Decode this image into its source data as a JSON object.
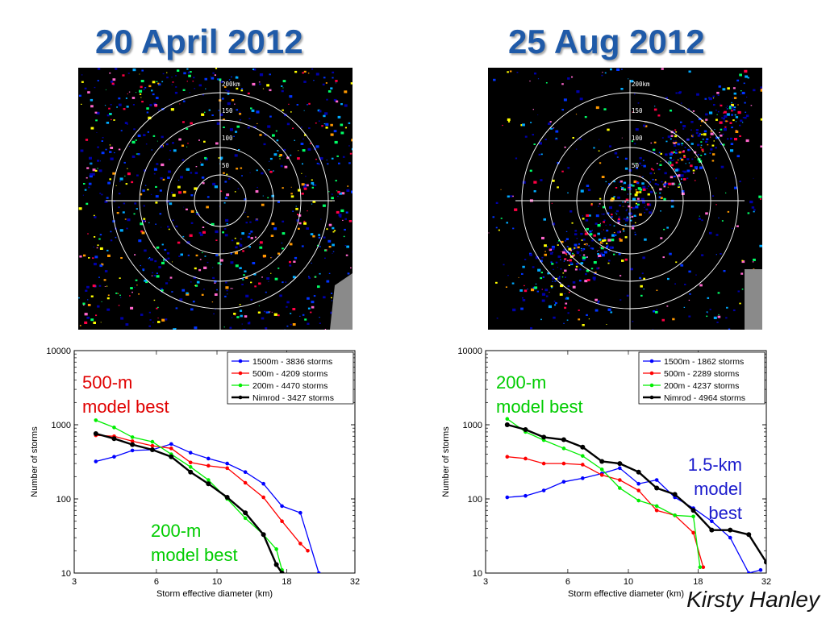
{
  "slide": {
    "left_title": "20 April 2012",
    "right_title": "25 Aug 2012",
    "author": "Kirsty Hanley"
  },
  "radar": {
    "ring_labels": [
      "200km",
      "150",
      "100",
      "50"
    ]
  },
  "annotations": {
    "left_top": [
      "500-m",
      "model best"
    ],
    "left_bottom": [
      "200-m",
      "model best"
    ],
    "right_top": [
      "200-m",
      "model best"
    ],
    "right_mid": [
      "1.5-km",
      "model",
      "best"
    ]
  },
  "colors": {
    "title": "#1f5aa8",
    "series_1500m": "#0000ff",
    "series_500m": "#ff0000",
    "series_200m": "#00ee00",
    "series_nimrod": "#000000"
  },
  "chart_data": [
    {
      "type": "line",
      "title": "",
      "xlabel": "Storm effective diameter (km)",
      "ylabel": "Number of storms",
      "xscale": "log",
      "yscale": "log",
      "xlim": [
        3,
        32
      ],
      "ylim": [
        10,
        10000
      ],
      "xticks": [
        3,
        6,
        10,
        18,
        32
      ],
      "yticks": [
        10,
        100,
        1000,
        10000
      ],
      "legend_position": "top-right",
      "series": [
        {
          "name": "1500m - 3836 storms",
          "color": "#0000ff",
          "width": 1.3,
          "x": [
            3.6,
            4.2,
            4.9,
            5.8,
            6.8,
            8.0,
            9.3,
            10.9,
            12.7,
            14.8,
            17.3,
            20.2,
            23.6
          ],
          "y": [
            320,
            370,
            450,
            460,
            550,
            420,
            350,
            300,
            230,
            160,
            80,
            65,
            10
          ]
        },
        {
          "name": "500m - 4209 storms",
          "color": "#ff0000",
          "width": 1.3,
          "x": [
            3.6,
            4.2,
            4.9,
            5.8,
            6.8,
            8.0,
            9.3,
            10.9,
            12.7,
            14.8,
            17.3,
            20.2,
            21.5
          ],
          "y": [
            720,
            700,
            600,
            520,
            480,
            310,
            280,
            260,
            165,
            105,
            50,
            25,
            20
          ]
        },
        {
          "name": "200m - 4470 storms",
          "color": "#00ee00",
          "width": 1.3,
          "x": [
            3.6,
            4.2,
            4.9,
            5.8,
            6.8,
            8.0,
            9.3,
            10.9,
            12.7,
            14.8,
            16.5,
            17.3
          ],
          "y": [
            1150,
            920,
            680,
            590,
            400,
            270,
            180,
            100,
            55,
            33,
            21,
            11
          ]
        },
        {
          "name": "Nimrod - 3427 storms",
          "color": "#000000",
          "width": 2.4,
          "x": [
            3.6,
            4.2,
            4.9,
            5.8,
            6.8,
            8.0,
            9.3,
            10.9,
            12.7,
            14.8,
            16.5,
            17.3
          ],
          "y": [
            760,
            650,
            540,
            460,
            370,
            230,
            160,
            105,
            65,
            33,
            13,
            10
          ]
        }
      ]
    },
    {
      "type": "line",
      "title": "",
      "xlabel": "Storm effective diameter (km)",
      "ylabel": "Number of storms",
      "xscale": "log",
      "yscale": "log",
      "xlim": [
        3,
        32
      ],
      "ylim": [
        10,
        10000
      ],
      "xticks": [
        3,
        6,
        10,
        18,
        32
      ],
      "yticks": [
        10,
        100,
        1000,
        10000
      ],
      "legend_position": "top-right",
      "series": [
        {
          "name": "1500m - 1862 storms",
          "color": "#0000ff",
          "width": 1.3,
          "x": [
            3.6,
            4.2,
            4.9,
            5.8,
            6.8,
            8.0,
            9.3,
            10.9,
            12.7,
            14.8,
            17.3,
            20.2,
            23.6,
            27.6,
            30.5
          ],
          "y": [
            105,
            110,
            130,
            170,
            190,
            220,
            260,
            160,
            180,
            105,
            75,
            50,
            30,
            10,
            11
          ]
        },
        {
          "name": "500m - 2289 storms",
          "color": "#ff0000",
          "width": 1.3,
          "x": [
            3.6,
            4.2,
            4.9,
            5.8,
            6.8,
            8.0,
            9.3,
            10.9,
            12.7,
            14.8,
            17.3,
            18.8
          ],
          "y": [
            370,
            350,
            300,
            300,
            290,
            210,
            180,
            130,
            70,
            60,
            35,
            12
          ]
        },
        {
          "name": "200m - 4237 storms",
          "color": "#00ee00",
          "width": 1.3,
          "x": [
            3.6,
            4.2,
            4.9,
            5.8,
            6.8,
            8.0,
            9.3,
            10.9,
            12.7,
            14.8,
            17.3,
            18.3
          ],
          "y": [
            1200,
            800,
            620,
            480,
            380,
            250,
            140,
            95,
            80,
            60,
            58,
            12
          ]
        },
        {
          "name": "Nimrod - 4964 storms",
          "color": "#000000",
          "width": 2.4,
          "x": [
            3.6,
            4.2,
            4.9,
            5.8,
            6.8,
            8.0,
            9.3,
            10.9,
            12.7,
            14.8,
            17.3,
            20.2,
            23.6,
            27.6,
            32.0
          ],
          "y": [
            1000,
            860,
            680,
            630,
            500,
            320,
            300,
            230,
            140,
            115,
            70,
            38,
            38,
            33,
            14
          ]
        }
      ]
    }
  ]
}
